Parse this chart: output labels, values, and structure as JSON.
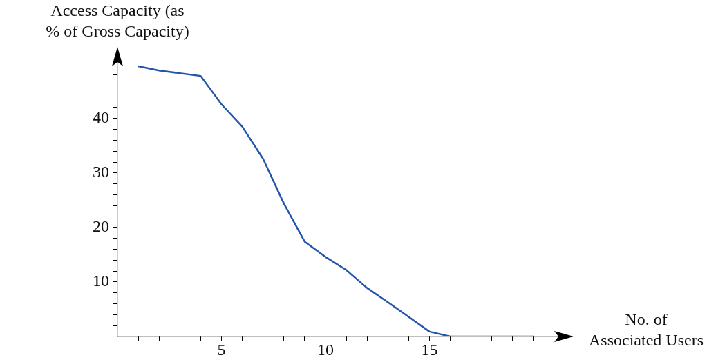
{
  "chart_data": {
    "type": "line",
    "xlabel": "No. of Associated Users",
    "ylabel": "Access Capacity (as % of Gross Capacity)",
    "x": [
      1,
      2,
      3,
      4,
      5,
      6,
      7,
      8,
      9,
      10,
      11,
      12,
      13,
      14,
      15,
      16,
      17,
      18,
      19,
      20
    ],
    "series": [
      {
        "color": "#2255aa",
        "values": [
          49.6,
          48.8,
          48.3,
          47.8,
          42.6,
          38.5,
          32.6,
          24.4,
          17.4,
          14.6,
          12.2,
          8.9,
          6.3,
          3.6,
          0.9,
          0,
          0,
          0,
          0,
          0
        ]
      }
    ],
    "xlim": [
      0,
      21.2
    ],
    "ylim": [
      0,
      50.6
    ],
    "xticks": [
      {
        "value": 1,
        "label": null
      },
      {
        "value": 2,
        "label": null
      },
      {
        "value": 3,
        "label": null
      },
      {
        "value": 4,
        "label": null
      },
      5,
      {
        "value": 6,
        "label": null
      },
      {
        "value": 7,
        "label": null
      },
      {
        "value": 8,
        "label": null
      },
      {
        "value": 9,
        "label": null
      },
      10,
      {
        "value": 11,
        "label": null
      },
      {
        "value": 12,
        "label": null
      },
      {
        "value": 13,
        "label": null
      },
      {
        "value": 14,
        "label": null
      },
      15,
      {
        "value": 16,
        "label": null
      },
      {
        "value": 17,
        "label": null
      },
      {
        "value": 18,
        "label": null
      },
      {
        "value": 19,
        "label": null
      },
      {
        "value": 20,
        "label": null
      }
    ],
    "yticks": [
      {
        "value": 2,
        "label": null
      },
      {
        "value": 4,
        "label": null
      },
      {
        "value": 6,
        "label": null
      },
      {
        "value": 8,
        "label": null
      },
      10,
      {
        "value": 12,
        "label": null
      },
      {
        "value": 14,
        "label": null
      },
      {
        "value": 16,
        "label": null
      },
      {
        "value": 18,
        "label": null
      },
      20,
      {
        "value": 22,
        "label": null
      },
      {
        "value": 24,
        "label": null
      },
      {
        "value": 26,
        "label": null
      },
      {
        "value": 28,
        "label": null
      },
      30,
      {
        "value": 32,
        "label": null
      },
      {
        "value": 34,
        "label": null
      },
      {
        "value": 36,
        "label": null
      },
      {
        "value": 38,
        "label": null
      },
      40,
      {
        "value": 42,
        "label": null
      },
      {
        "value": 44,
        "label": null
      },
      {
        "value": 46,
        "label": null
      },
      {
        "value": 48,
        "label": null
      }
    ],
    "grid": false,
    "legend": false,
    "marker": "none",
    "line_style": "solid"
  }
}
